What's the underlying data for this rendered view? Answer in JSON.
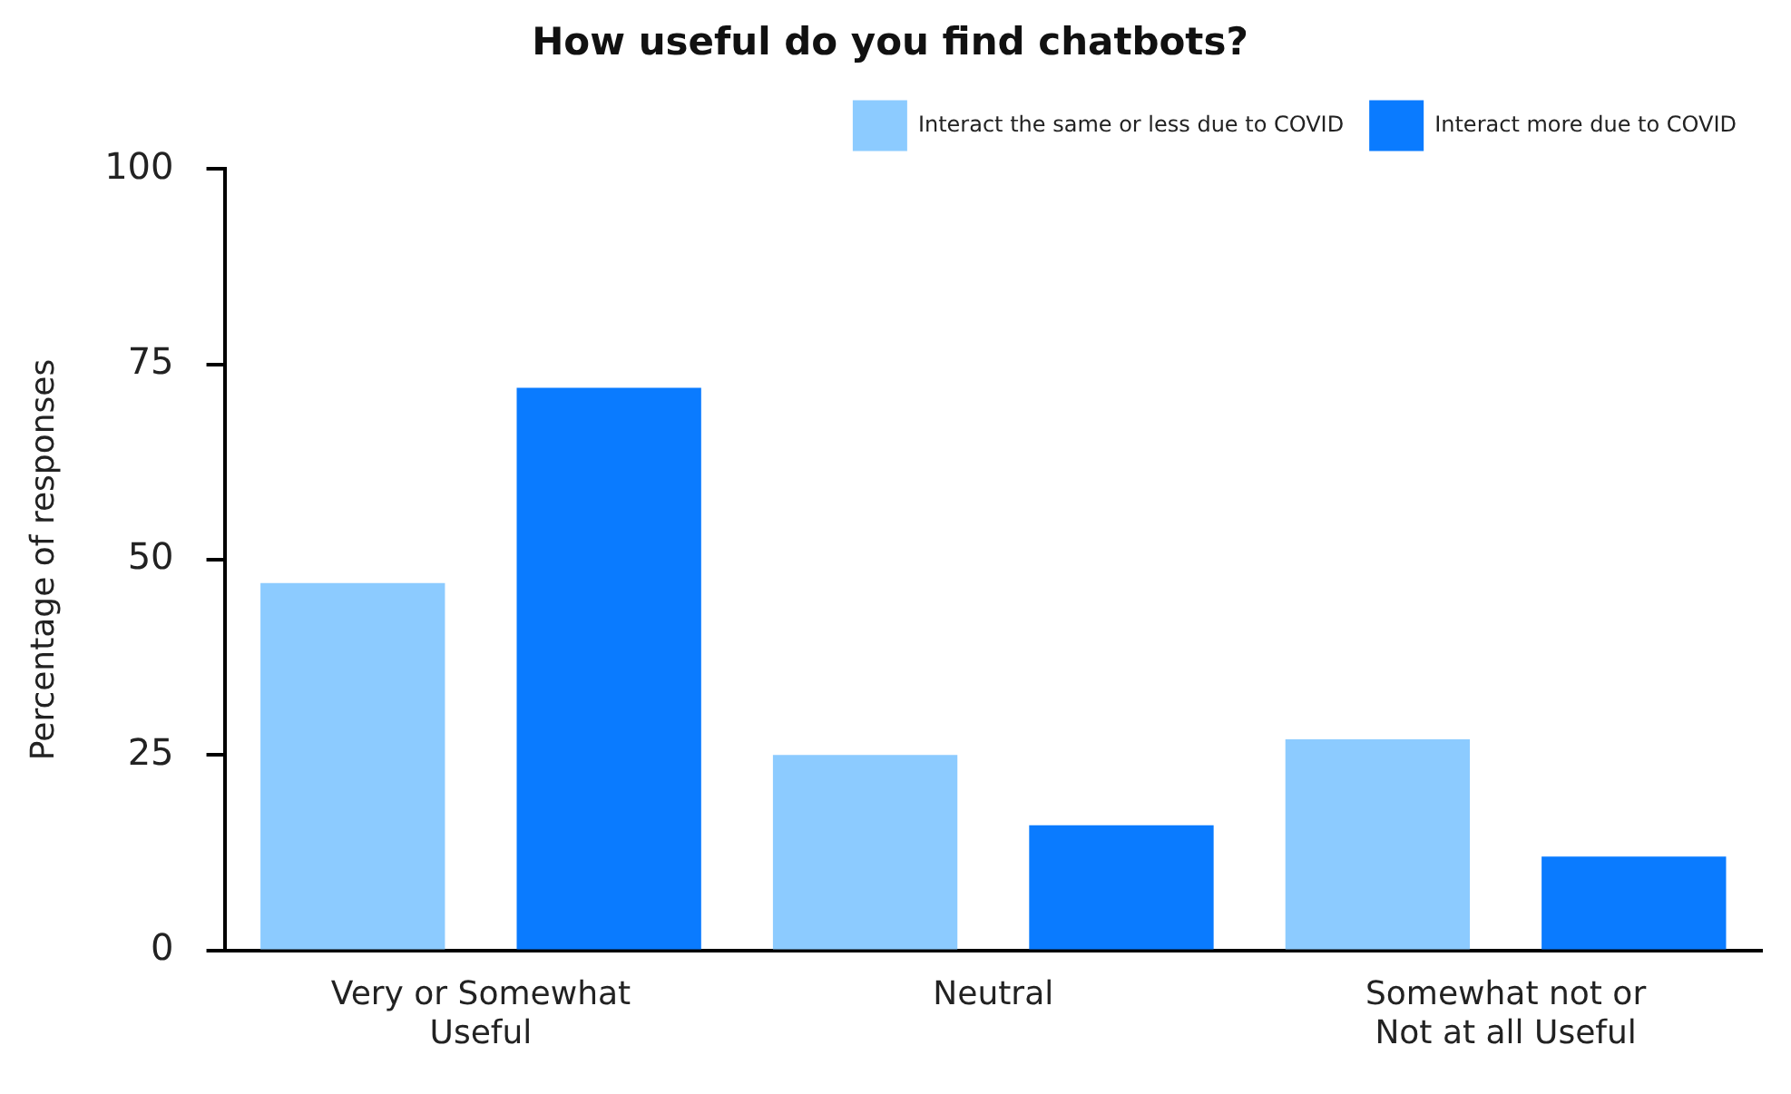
{
  "chart_data": {
    "type": "bar",
    "title": "How useful do you find chatbots?",
    "ylabel": "Percentage of responses",
    "categories": [
      "Very or Somewhat Useful",
      "Neutral",
      "Somewhat not or Not at all Useful"
    ],
    "series": [
      {
        "name": "Interact the same or less due to COVID",
        "color": "#8ccbff",
        "values": [
          47,
          25,
          27
        ]
      },
      {
        "name": "Interact more due to COVID",
        "color": "#0a7bff",
        "values": [
          72,
          16,
          12
        ]
      }
    ],
    "ylim": [
      0,
      100
    ],
    "yticks": [
      0,
      25,
      50,
      75,
      100
    ],
    "grid": false,
    "legend": "top right"
  }
}
